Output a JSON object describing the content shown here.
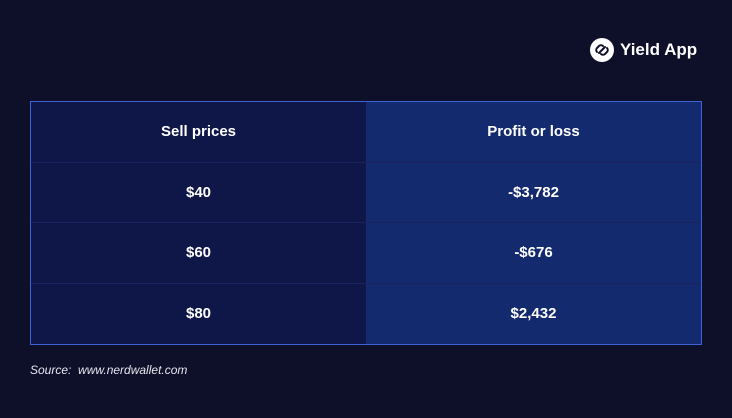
{
  "header": {
    "brand": "Yield App"
  },
  "table": {
    "columns": [
      "Sell prices",
      "Profit or loss"
    ],
    "rows": [
      [
        "$40",
        "-$3,782"
      ],
      [
        "$60",
        "-$676"
      ],
      [
        "$80",
        "$2,432"
      ]
    ]
  },
  "footer": {
    "source_label": "Source:",
    "source": "www.nerdwallet.com"
  }
}
